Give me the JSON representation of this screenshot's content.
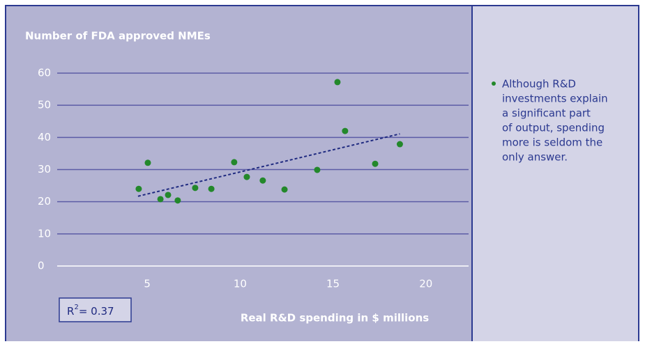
{
  "chart_data": {
    "type": "scatter",
    "title": "Number of FDA approved NMEs",
    "x_label": "Real R&D spending in $ millions",
    "x": [
      4.54,
      5.03,
      5.71,
      6.12,
      6.64,
      7.58,
      8.45,
      9.68,
      10.36,
      11.22,
      12.39,
      14.15,
      15.24,
      15.65,
      17.27,
      18.6
    ],
    "values": [
      24.0,
      32.1,
      20.8,
      22.1,
      20.4,
      24.3,
      24.0,
      32.3,
      27.7,
      26.6,
      23.8,
      29.9,
      57.2,
      42.0,
      31.8,
      37.9
    ],
    "color": "#23882b",
    "trendline": {
      "x": [
        4.5,
        18.6
      ],
      "y": [
        21.7,
        41.1
      ],
      "color": "#1f2a80",
      "dashed": true
    },
    "r2_label": {
      "base": "R",
      "sup": "2",
      "text": "= 0.37"
    },
    "xlim": [
      0.15,
      22.3
    ],
    "xticks": [
      5,
      10,
      15,
      20
    ],
    "ylim": [
      0,
      60
    ],
    "yticks": [
      0,
      10,
      20,
      30,
      40,
      50,
      60
    ],
    "grid": true
  },
  "side_note": {
    "lines": [
      "Although R&D",
      "investments explain",
      "a significant part",
      "of output, spending",
      "more is seldom the",
      "only answer."
    ]
  }
}
